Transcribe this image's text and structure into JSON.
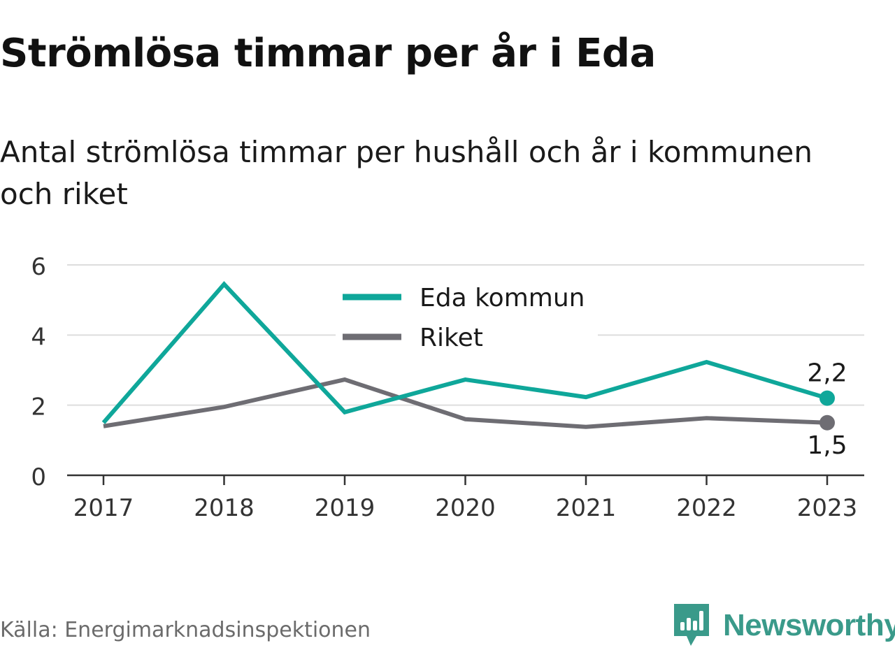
{
  "title": "Strömlösa timmar per år i Eda",
  "subtitle": "Antal strömlösa timmar per hushåll och år i kommunen och riket",
  "source": "Källa: Energimarknadsinspektionen",
  "brand": {
    "name": "Newsworthy",
    "icon": "newsworthy-logo-icon",
    "color": "#3a9a8a"
  },
  "chart_data": {
    "type": "line",
    "x": [
      "2017",
      "2018",
      "2019",
      "2020",
      "2021",
      "2022",
      "2023"
    ],
    "ylim": [
      0,
      6
    ],
    "yticks": [
      "0",
      "2",
      "4",
      "6"
    ],
    "grid": true,
    "legend_position": "top-center",
    "series": [
      {
        "name": "Eda kommun",
        "color": "#0fa79a",
        "values": [
          1.5,
          5.45,
          1.8,
          2.73,
          2.23,
          3.23,
          2.2
        ],
        "end_label": "2,2"
      },
      {
        "name": "Riket",
        "color": "#6e6d73",
        "values": [
          1.4,
          1.95,
          2.73,
          1.6,
          1.38,
          1.63,
          1.5
        ],
        "end_label": "1,5"
      }
    ]
  }
}
